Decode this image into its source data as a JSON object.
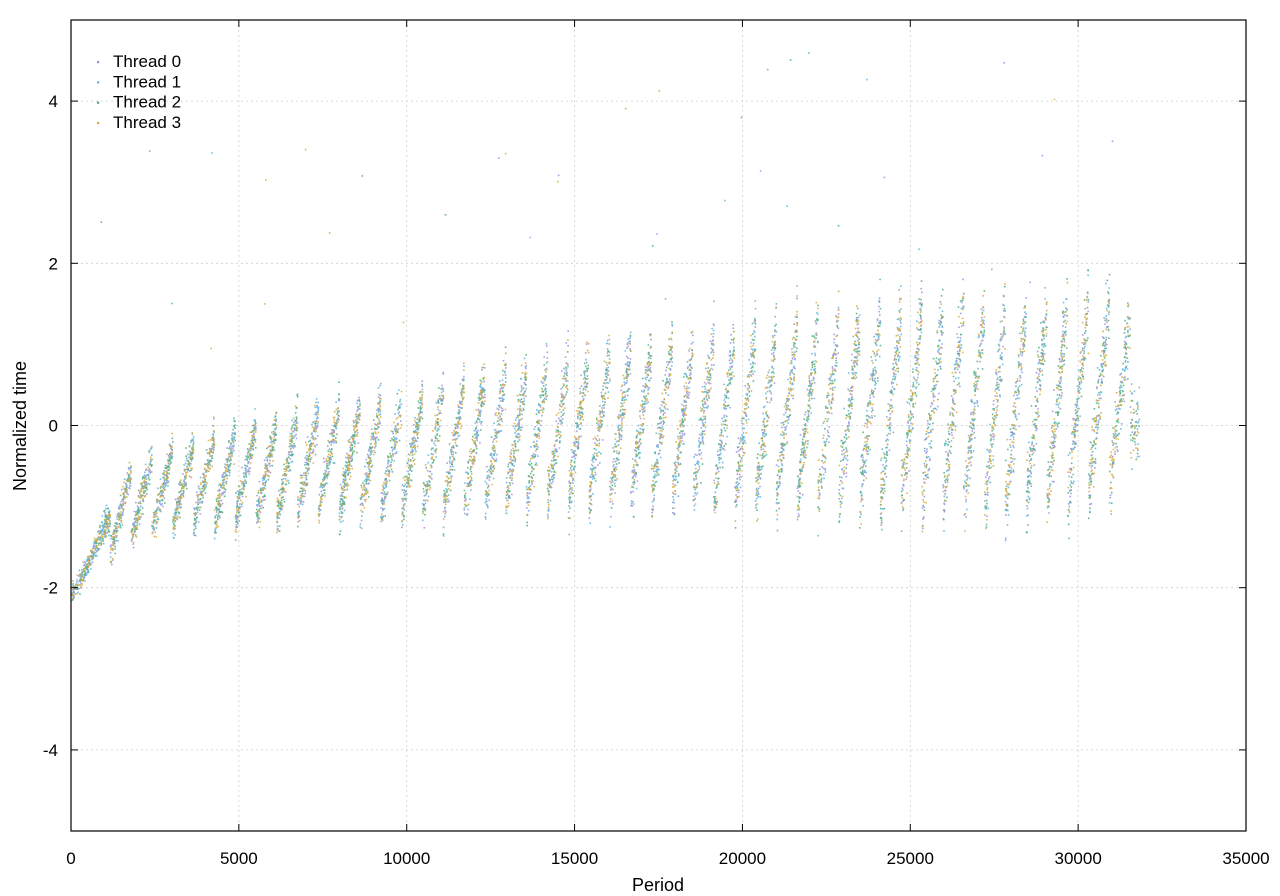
{
  "chart_data": {
    "type": "scatter",
    "xlabel": "Period",
    "ylabel": "Normalized time",
    "xlim": [
      0,
      35000
    ],
    "ylim": [
      -5,
      5
    ],
    "xticks": [
      0,
      5000,
      10000,
      15000,
      20000,
      25000,
      30000,
      35000
    ],
    "yticks": [
      -4,
      -2,
      0,
      2,
      4
    ],
    "grid": true,
    "legend_position": "top-left",
    "series": [
      {
        "name": "Thread 0",
        "color": "#9b8fe0"
      },
      {
        "name": "Thread 1",
        "color": "#5ab4e0"
      },
      {
        "name": "Thread 2",
        "color": "#4caf7d"
      },
      {
        "name": "Thread 3",
        "color": "#d9a93c"
      }
    ],
    "data_extent": {
      "x_max": 31800
    },
    "trend": [
      {
        "x": 0,
        "y": -2.1
      },
      {
        "x": 500,
        "y": -1.7
      },
      {
        "x": 1000,
        "y": -1.2
      },
      {
        "x": 2000,
        "y": -0.9
      },
      {
        "x": 3000,
        "y": -0.75
      },
      {
        "x": 5000,
        "y": -0.6
      },
      {
        "x": 7000,
        "y": -0.45
      },
      {
        "x": 10000,
        "y": -0.35
      },
      {
        "x": 13000,
        "y": -0.15
      },
      {
        "x": 16000,
        "y": 0.0
      },
      {
        "x": 19000,
        "y": 0.1
      },
      {
        "x": 22000,
        "y": 0.15
      },
      {
        "x": 25000,
        "y": 0.25
      },
      {
        "x": 28000,
        "y": 0.2
      },
      {
        "x": 31000,
        "y": 0.4
      },
      {
        "x": 31800,
        "y": 0.0
      }
    ],
    "bursts": [
      {
        "start": 1150,
        "period": 620,
        "count": 49,
        "low": -1.1,
        "high": 1.1
      }
    ]
  }
}
